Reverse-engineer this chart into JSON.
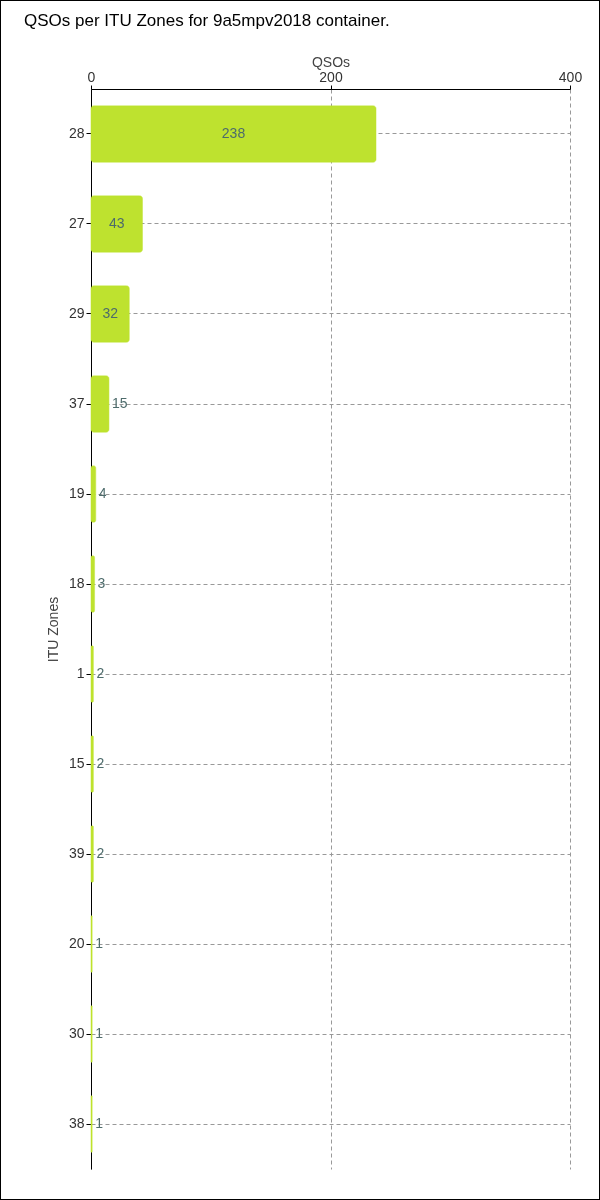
{
  "chart_data": {
    "type": "bar",
    "orientation": "horizontal",
    "title": "QSOs per ITU Zones for 9a5mpv2018 container.",
    "xlabel": "QSOs",
    "ylabel": "ITU Zones",
    "categories": [
      "28",
      "27",
      "29",
      "37",
      "19",
      "18",
      "1",
      "15",
      "39",
      "20",
      "30",
      "38"
    ],
    "values": [
      238,
      43,
      32,
      15,
      4,
      3,
      2,
      2,
      2,
      1,
      1,
      1
    ],
    "color": "#bee22f",
    "xlim": [
      0,
      400
    ],
    "xticks": [
      0,
      200,
      400
    ],
    "grid": true,
    "data_labels": true
  }
}
